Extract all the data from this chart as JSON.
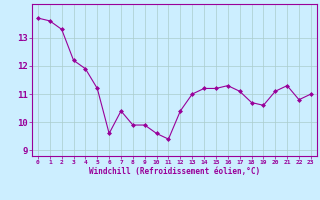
{
  "x": [
    0,
    1,
    2,
    3,
    4,
    5,
    6,
    7,
    8,
    9,
    10,
    11,
    12,
    13,
    14,
    15,
    16,
    17,
    18,
    19,
    20,
    21,
    22,
    23
  ],
  "y": [
    13.7,
    13.6,
    13.3,
    12.2,
    11.9,
    11.2,
    9.6,
    10.4,
    9.9,
    9.9,
    9.6,
    9.4,
    10.4,
    11.0,
    11.2,
    11.2,
    11.3,
    11.1,
    10.7,
    10.6,
    11.1,
    11.3,
    10.8,
    11.0
  ],
  "line_color": "#990099",
  "marker": "D",
  "marker_size": 2,
  "bg_color": "#cceeff",
  "grid_color": "#aacccc",
  "xlabel": "Windchill (Refroidissement éolien,°C)",
  "xlabel_color": "#990099",
  "tick_color": "#990099",
  "ylim": [
    8.8,
    14.2
  ],
  "yticks": [
    9,
    10,
    11,
    12,
    13
  ],
  "xlim": [
    -0.5,
    23.5
  ],
  "xticks": [
    0,
    1,
    2,
    3,
    4,
    5,
    6,
    7,
    8,
    9,
    10,
    11,
    12,
    13,
    14,
    15,
    16,
    17,
    18,
    19,
    20,
    21,
    22,
    23
  ]
}
